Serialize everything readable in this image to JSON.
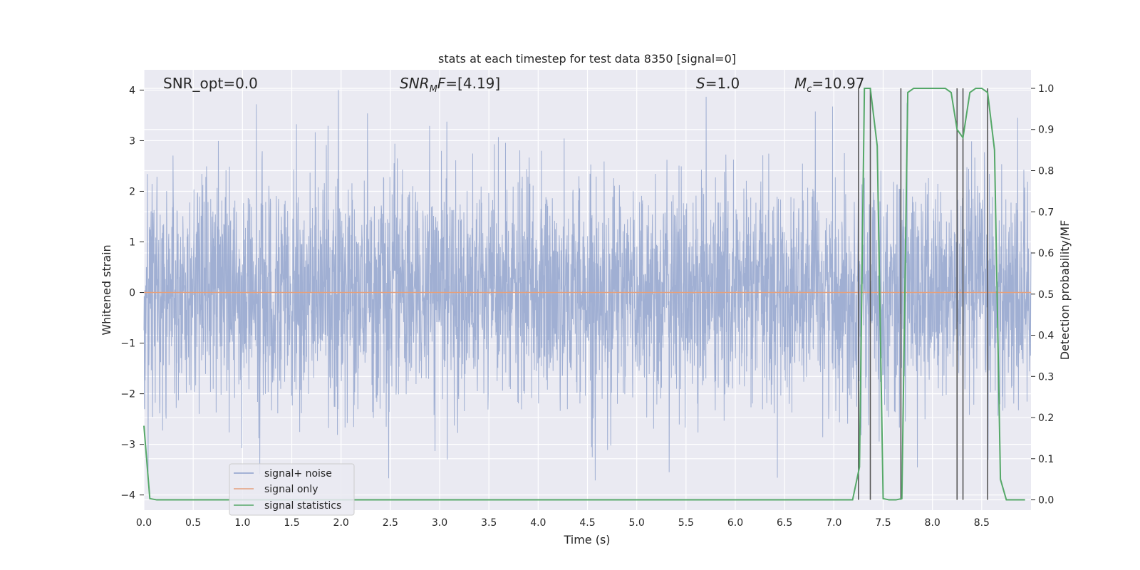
{
  "chart_data": {
    "type": "line",
    "title": "stats at each timestep for test data 8350 [signal=0]",
    "xlabel": "Time (s)",
    "ylabel_left": "Whitened strain",
    "ylabel_right": "Detection probability/MF",
    "xlim": [
      0.0,
      9.0
    ],
    "ylim_left": [
      -4.3,
      4.4
    ],
    "ylim_right": [
      -0.025,
      1.045
    ],
    "grid": true,
    "legend_position": "lower-left",
    "x_ticks": [
      "0.0",
      "0.5",
      "1.0",
      "1.5",
      "2.0",
      "2.5",
      "3.0",
      "3.5",
      "4.0",
      "4.5",
      "5.0",
      "5.5",
      "6.0",
      "6.5",
      "7.0",
      "7.5",
      "8.0",
      "8.5"
    ],
    "y_left_ticks": [
      "4",
      "3",
      "2",
      "1",
      "0",
      "−1",
      "−2",
      "−3",
      "−4"
    ],
    "y_right_ticks": [
      "1.0",
      "0.9",
      "0.8",
      "0.7",
      "0.6",
      "0.5",
      "0.4",
      "0.3",
      "0.2",
      "0.1",
      "0.0"
    ],
    "annotations": {
      "snr_opt": "SNR_opt=0.0",
      "snr_mf_main": "SNR",
      "snr_mf_sub": "M",
      "snr_mf_rest": "F=[4.19]",
      "s_main": "S",
      "s_rest": "=1.0",
      "mc_main": "M",
      "mc_sub": "c",
      "mc_rest": "=10.97"
    },
    "series": [
      {
        "name": "signal+ noise",
        "color": "#8da0cb",
        "axis": "left",
        "description_values": "noise strain approx. +/-1.5 typical with spikes to +4.0 and -4.0"
      },
      {
        "name": "signal only",
        "color": "#e5a07c",
        "axis": "left",
        "x": [
          0.0,
          9.0
        ],
        "y": [
          0.0,
          0.0
        ]
      },
      {
        "name": "signal statistics",
        "color": "#55a868",
        "axis": "right",
        "x": [
          0.0,
          0.06,
          0.13,
          0.5,
          1.0,
          2.0,
          3.0,
          4.0,
          5.0,
          6.0,
          7.0,
          7.19,
          7.26,
          7.31,
          7.37,
          7.44,
          7.5,
          7.56,
          7.63,
          7.69,
          7.75,
          7.81,
          7.88,
          8.0,
          8.13,
          8.19,
          8.25,
          8.31,
          8.38,
          8.44,
          8.5,
          8.56,
          8.63,
          8.69,
          8.75,
          8.81,
          8.88,
          8.94
        ],
        "y": [
          0.18,
          0.003,
          0.0,
          0.0,
          0.0,
          0.0,
          0.0,
          0.0,
          0.0,
          0.0,
          0.0,
          0.0,
          0.08,
          1.0,
          1.0,
          0.86,
          0.003,
          0.0,
          0.0,
          0.003,
          0.99,
          1.0,
          1.0,
          1.0,
          1.0,
          0.99,
          0.9,
          0.88,
          0.99,
          1.0,
          1.0,
          0.99,
          0.85,
          0.05,
          0.0,
          0.0,
          0.0,
          0.0
        ]
      }
    ],
    "vertical_markers_x": [
      7.25,
      7.37,
      7.68,
      8.25,
      8.31,
      8.56
    ],
    "marker_color": "#555555"
  }
}
